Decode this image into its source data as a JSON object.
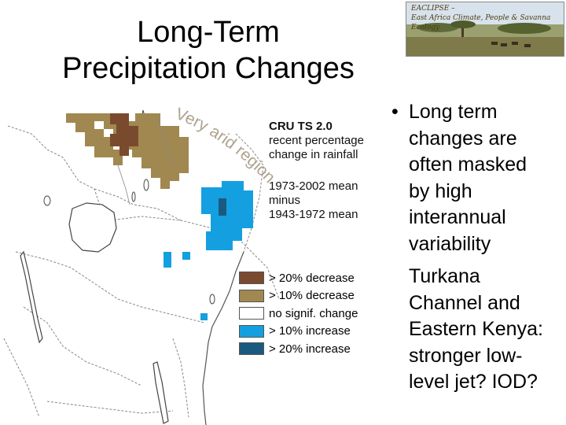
{
  "title_line1": "Long-Term",
  "title_line2": "Precipitation Changes",
  "logo": {
    "line1": "EACLIPSE –",
    "line2": "East Africa Climate, People & Savanna Ecology"
  },
  "map_annotation": "Very arid regions",
  "map_note": {
    "line1": "CRU TS 2.0",
    "line2": "recent percentage",
    "line3": "change in rainfall",
    "line4": "1973-2002 mean",
    "line5": "minus",
    "line6": "1943-1972 mean"
  },
  "legend": [
    {
      "label": "> 20% decrease",
      "color": "#7a4a2e"
    },
    {
      "label": "> 10% decrease",
      "color": "#a08850"
    },
    {
      "label": "no signif. change",
      "color": "#ffffff"
    },
    {
      "label": "> 10% increase",
      "color": "#14a0e0"
    },
    {
      "label": "> 20% increase",
      "color": "#1a5a80"
    }
  ],
  "bullets": [
    {
      "mark": "•",
      "text": "Long term\nchanges are\noften masked\nby high\ninterannual\nvariability"
    },
    {
      "mark": "",
      "text": "Turkana\nChannel and\nEastern Kenya:\nstronger low-\nlevel jet? IOD?"
    }
  ]
}
